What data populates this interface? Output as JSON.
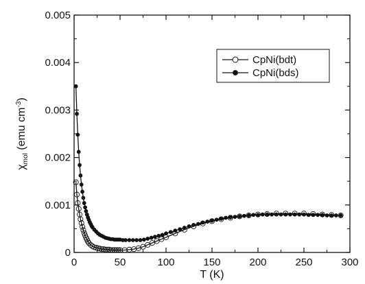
{
  "chart_data": {
    "type": "scatter",
    "xlabel": "T (K)",
    "ylabel": {
      "chi": "χ",
      "sub": "mol",
      "rest": " (emu cm",
      "sup": "-3",
      "close": ")"
    },
    "xlim": [
      0,
      300
    ],
    "ylim": [
      0,
      0.005
    ],
    "x_ticks": [
      "0",
      "50",
      "100",
      "150",
      "200",
      "250",
      "300"
    ],
    "y_ticks": [
      "0",
      "0.001",
      "0.002",
      "0.003",
      "0.004",
      "0.005"
    ],
    "grid": false,
    "legend_position": "top-right",
    "series": [
      {
        "name": "CpNi(bdt)",
        "marker": "open-circle",
        "fit_line": true,
        "points": [
          [
            2,
            0.00148
          ],
          [
            3,
            0.00122
          ],
          [
            4,
            0.00104
          ],
          [
            5,
            0.00092
          ],
          [
            6,
            0.0008
          ],
          [
            7,
            0.0007
          ],
          [
            8,
            0.00062
          ],
          [
            9,
            0.00054
          ],
          [
            10,
            0.00047
          ],
          [
            11,
            0.00041
          ],
          [
            12,
            0.00036
          ],
          [
            13,
            0.00031
          ],
          [
            14,
            0.00027
          ],
          [
            15,
            0.00023
          ],
          [
            16,
            0.0002
          ],
          [
            18,
            0.00016
          ],
          [
            20,
            0.00013
          ],
          [
            22,
            0.00011
          ],
          [
            24,
            0.0001
          ],
          [
            26,
            9e-05
          ],
          [
            28,
            8e-05
          ],
          [
            30,
            7e-05
          ],
          [
            32,
            7e-05
          ],
          [
            34,
            6e-05
          ],
          [
            36,
            6e-05
          ],
          [
            38,
            6e-05
          ],
          [
            40,
            5e-05
          ],
          [
            42,
            5e-05
          ],
          [
            44,
            5e-05
          ],
          [
            46,
            5e-05
          ],
          [
            48,
            5e-05
          ],
          [
            50,
            5e-05
          ],
          [
            55,
            5e-05
          ],
          [
            60,
            6e-05
          ],
          [
            65,
            7e-05
          ],
          [
            70,
            9e-05
          ],
          [
            75,
            0.00012
          ],
          [
            80,
            0.00016
          ],
          [
            85,
            0.0002
          ],
          [
            90,
            0.00024
          ],
          [
            95,
            0.00028
          ],
          [
            100,
            0.00032
          ],
          [
            110,
            0.0004
          ],
          [
            120,
            0.00048
          ],
          [
            130,
            0.00055
          ],
          [
            140,
            0.00061
          ],
          [
            150,
            0.00066
          ],
          [
            160,
            0.0007
          ],
          [
            170,
            0.00073
          ],
          [
            180,
            0.00076
          ],
          [
            190,
            0.00078
          ],
          [
            200,
            0.0008
          ],
          [
            210,
            0.00081
          ],
          [
            220,
            0.00082
          ],
          [
            230,
            0.00082
          ],
          [
            240,
            0.00082
          ],
          [
            250,
            0.00082
          ],
          [
            260,
            0.00081
          ],
          [
            270,
            0.0008
          ],
          [
            280,
            0.00079
          ],
          [
            290,
            0.00078
          ]
        ]
      },
      {
        "name": "CpNi(bds)",
        "marker": "filled-circle",
        "fit_line": true,
        "points": [
          [
            2,
            0.0035
          ],
          [
            3,
            0.00292
          ],
          [
            4,
            0.00248
          ],
          [
            5,
            0.00212
          ],
          [
            6,
            0.00184
          ],
          [
            7,
            0.00162
          ],
          [
            8,
            0.00143
          ],
          [
            9,
            0.00128
          ],
          [
            10,
            0.00115
          ],
          [
            11,
            0.00104
          ],
          [
            12,
            0.00095
          ],
          [
            13,
            0.00087
          ],
          [
            14,
            0.0008
          ],
          [
            15,
            0.00074
          ],
          [
            16,
            0.00069
          ],
          [
            17,
            0.00064
          ],
          [
            18,
            0.0006
          ],
          [
            19,
            0.00056
          ],
          [
            20,
            0.00053
          ],
          [
            22,
            0.00048
          ],
          [
            24,
            0.00044
          ],
          [
            26,
            0.0004
          ],
          [
            28,
            0.00037
          ],
          [
            30,
            0.00035
          ],
          [
            32,
            0.00033
          ],
          [
            34,
            0.00031
          ],
          [
            36,
            0.0003
          ],
          [
            38,
            0.00029
          ],
          [
            40,
            0.00028
          ],
          [
            42,
            0.00028
          ],
          [
            44,
            0.00027
          ],
          [
            46,
            0.00027
          ],
          [
            48,
            0.00027
          ],
          [
            50,
            0.00027
          ],
          [
            53,
            0.00026
          ],
          [
            56,
            0.00026
          ],
          [
            60,
            0.00026
          ],
          [
            64,
            0.00026
          ],
          [
            68,
            0.00026
          ],
          [
            72,
            0.00026
          ],
          [
            76,
            0.00027
          ],
          [
            80,
            0.00029
          ],
          [
            84,
            0.00031
          ],
          [
            88,
            0.00033
          ],
          [
            92,
            0.00035
          ],
          [
            96,
            0.00037
          ],
          [
            100,
            0.0004
          ],
          [
            105,
            0.00043
          ],
          [
            110,
            0.00046
          ],
          [
            115,
            0.00049
          ],
          [
            120,
            0.00052
          ],
          [
            125,
            0.00055
          ],
          [
            130,
            0.00058
          ],
          [
            135,
            0.0006
          ],
          [
            140,
            0.00063
          ],
          [
            145,
            0.00065
          ],
          [
            150,
            0.00067
          ],
          [
            155,
            0.00069
          ],
          [
            160,
            0.00071
          ],
          [
            165,
            0.00073
          ],
          [
            170,
            0.00074
          ],
          [
            175,
            0.00075
          ],
          [
            180,
            0.00076
          ],
          [
            185,
            0.00077
          ],
          [
            190,
            0.00078
          ],
          [
            195,
            0.00079
          ],
          [
            200,
            0.00079
          ],
          [
            205,
            0.0008
          ],
          [
            210,
            0.0008
          ],
          [
            215,
            0.0008
          ],
          [
            220,
            0.0008
          ],
          [
            225,
            0.0008
          ],
          [
            230,
            0.0008
          ],
          [
            235,
            0.0008
          ],
          [
            240,
            0.0008
          ],
          [
            245,
            0.0008
          ],
          [
            250,
            0.0008
          ],
          [
            255,
            0.00079
          ],
          [
            260,
            0.00079
          ],
          [
            265,
            0.00079
          ],
          [
            270,
            0.00079
          ],
          [
            275,
            0.00078
          ],
          [
            280,
            0.00078
          ],
          [
            285,
            0.00078
          ],
          [
            290,
            0.00078
          ]
        ]
      }
    ]
  }
}
